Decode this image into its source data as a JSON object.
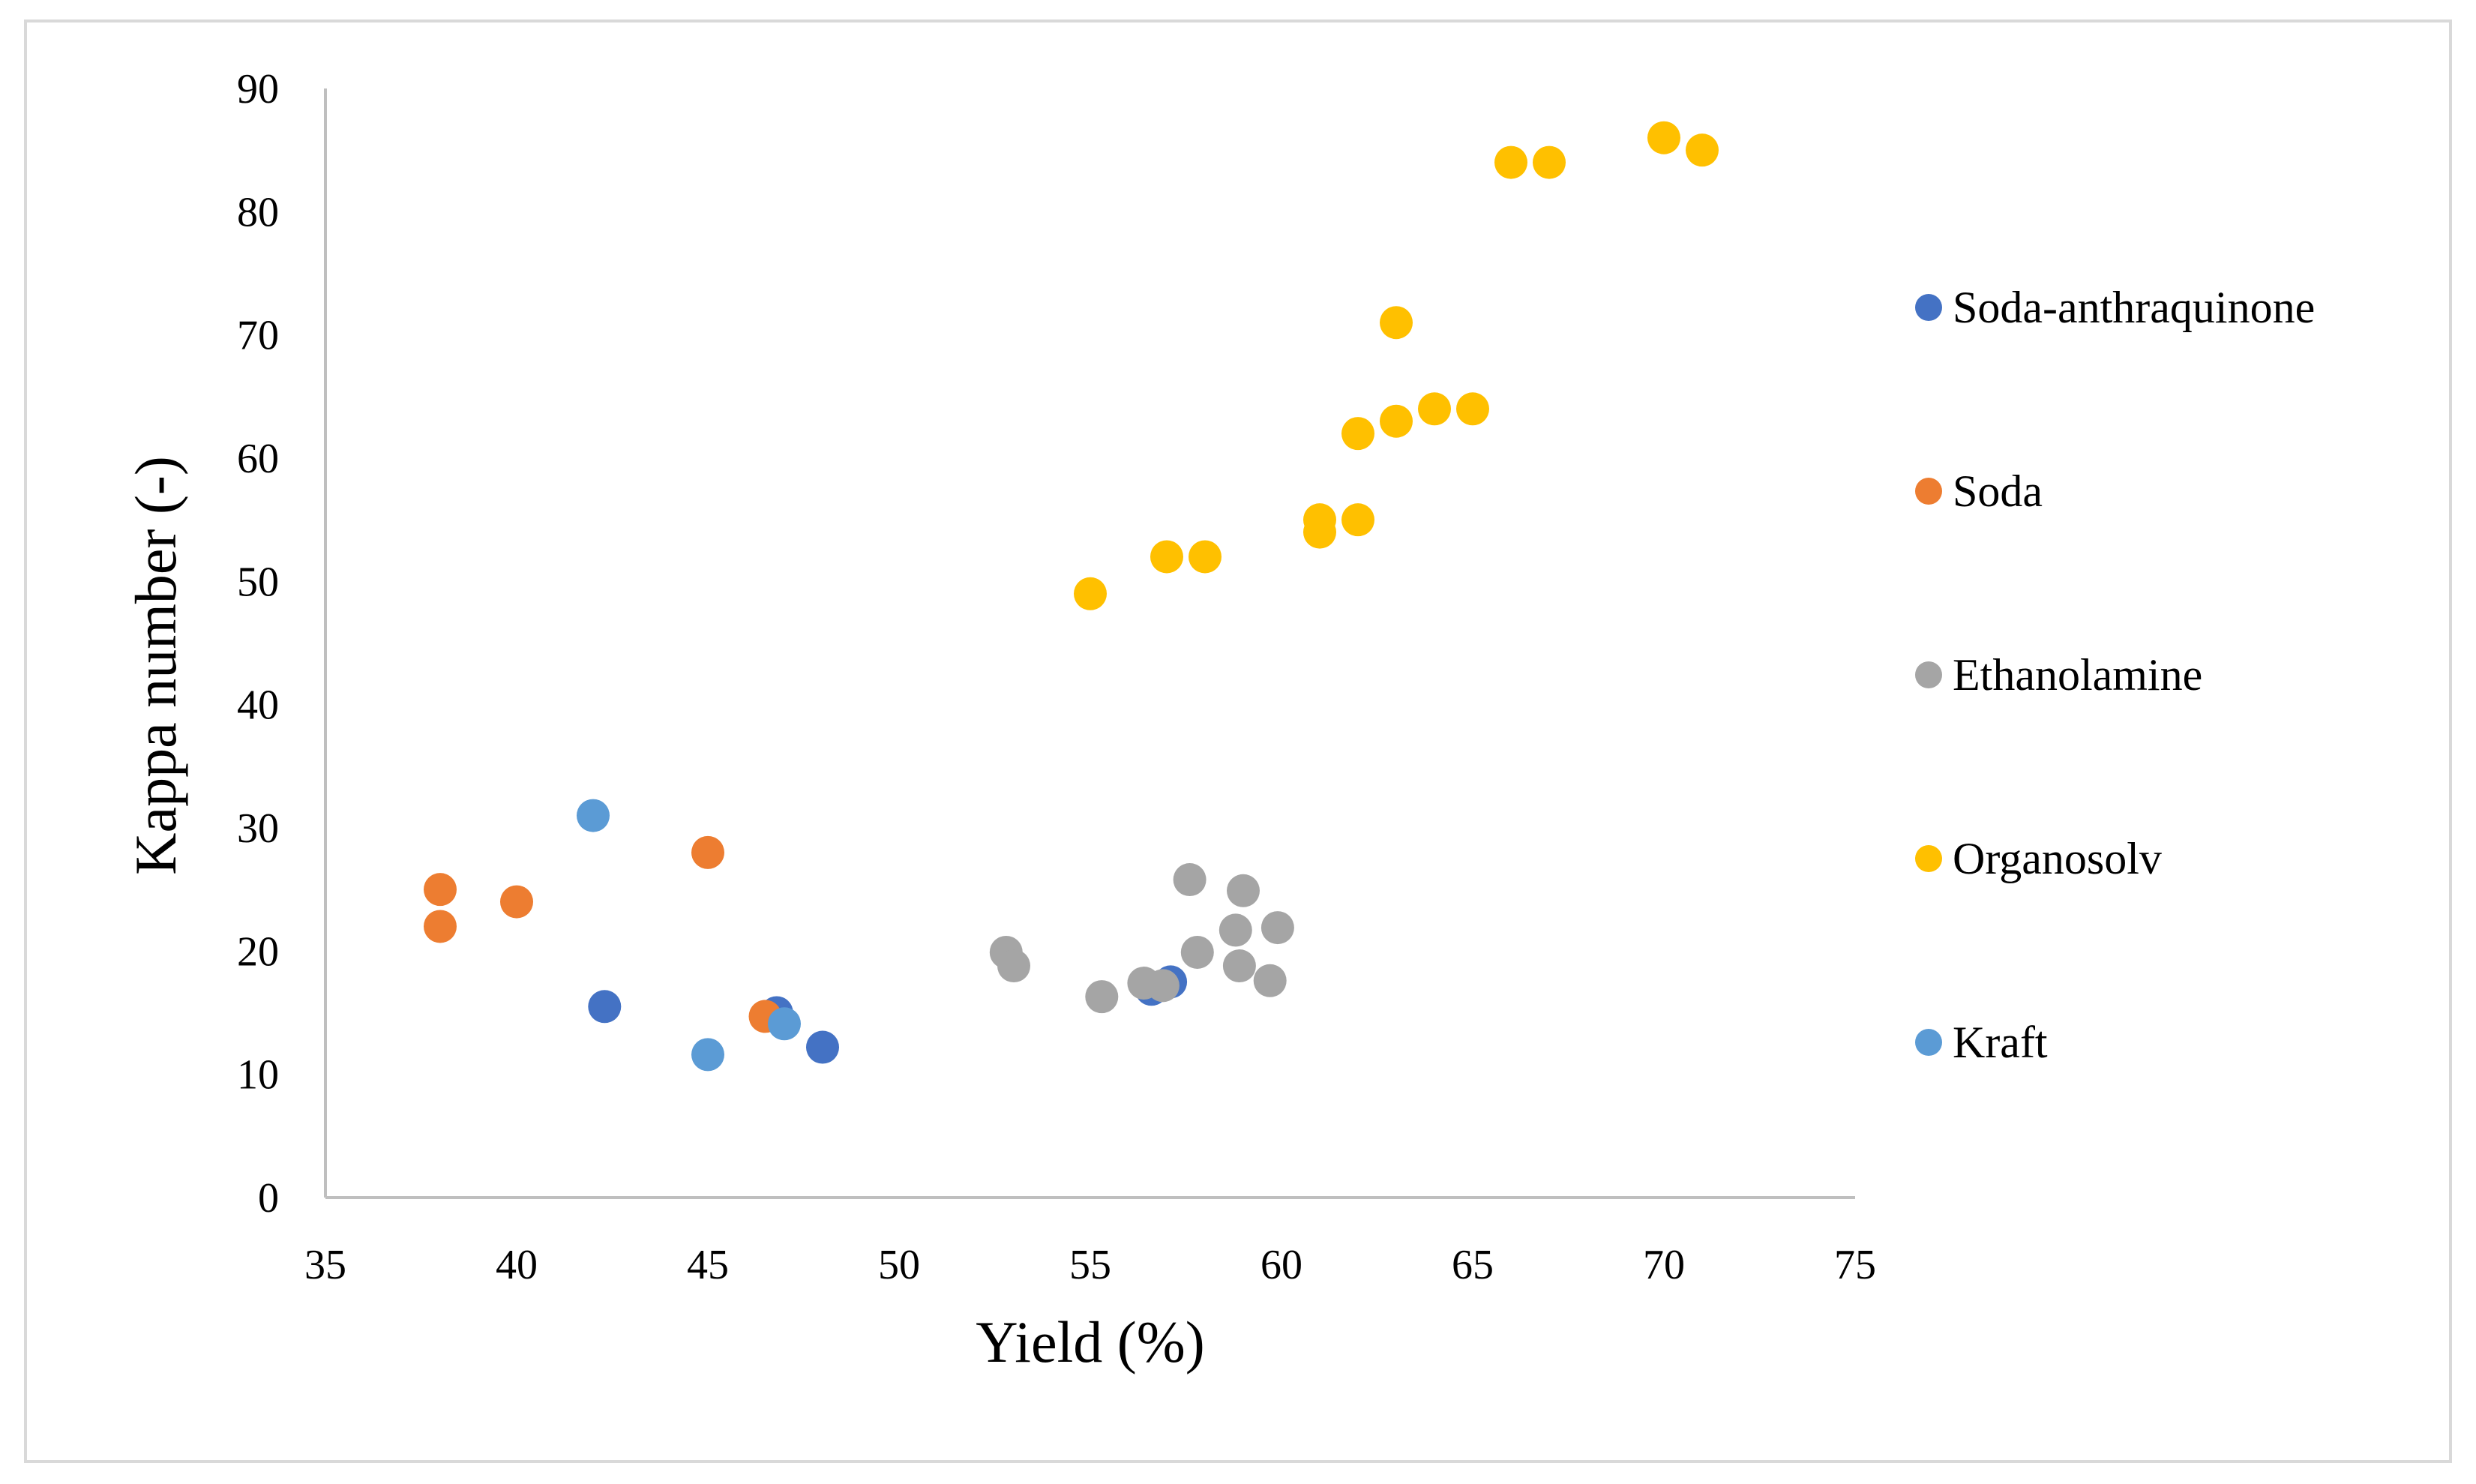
{
  "chart_data": {
    "type": "scatter",
    "title": "",
    "xlabel": "Yield (%)",
    "ylabel": "Kappa number (-)",
    "xlim": [
      35,
      75
    ],
    "ylim": [
      0,
      90
    ],
    "xticks": [
      "35",
      "40",
      "45",
      "50",
      "55",
      "60",
      "65",
      "70",
      "75"
    ],
    "yticks": [
      "0",
      "10",
      "20",
      "30",
      "40",
      "50",
      "60",
      "70",
      "80",
      "90"
    ],
    "grid": false,
    "legend_position": "right",
    "series": [
      {
        "name": "Soda-anthraquinone",
        "color": "#4472c4",
        "points": [
          [
            42.3,
            15.5
          ],
          [
            46.8,
            15.0
          ],
          [
            48.0,
            12.2
          ],
          [
            56.6,
            16.9
          ],
          [
            57.1,
            17.5
          ]
        ]
      },
      {
        "name": "Soda",
        "color": "#ed7d31",
        "points": [
          [
            38.0,
            25.0
          ],
          [
            38.0,
            22.0
          ],
          [
            40.0,
            24.0
          ],
          [
            45.0,
            28.0
          ],
          [
            46.5,
            14.7
          ]
        ]
      },
      {
        "name": "Ethanolamine",
        "color": "#a5a5a5",
        "points": [
          [
            52.8,
            19.9
          ],
          [
            53.0,
            18.8
          ],
          [
            55.3,
            16.3
          ],
          [
            56.4,
            17.4
          ],
          [
            56.9,
            17.2
          ],
          [
            57.6,
            25.8
          ],
          [
            57.8,
            19.9
          ],
          [
            58.8,
            21.7
          ],
          [
            58.9,
            18.8
          ],
          [
            59.0,
            24.9
          ],
          [
            59.7,
            17.6
          ],
          [
            59.9,
            21.9
          ]
        ]
      },
      {
        "name": "Organosolv",
        "color": "#ffc000",
        "points": [
          [
            55.0,
            49.0
          ],
          [
            57.0,
            52.0
          ],
          [
            58.0,
            52.0
          ],
          [
            61.0,
            54.0
          ],
          [
            61.0,
            55.0
          ],
          [
            62.0,
            55.0
          ],
          [
            62.0,
            62.0
          ],
          [
            63.0,
            63.0
          ],
          [
            63.0,
            71.0
          ],
          [
            64.0,
            64.0
          ],
          [
            65.0,
            64.0
          ],
          [
            66.0,
            84.0
          ],
          [
            67.0,
            84.0
          ],
          [
            70.0,
            86.0
          ],
          [
            71.0,
            85.0
          ]
        ]
      },
      {
        "name": "Kraft",
        "color": "#5b9bd5",
        "points": [
          [
            42.0,
            31.0
          ],
          [
            45.0,
            11.6
          ],
          [
            47.0,
            14.1
          ]
        ]
      }
    ]
  }
}
